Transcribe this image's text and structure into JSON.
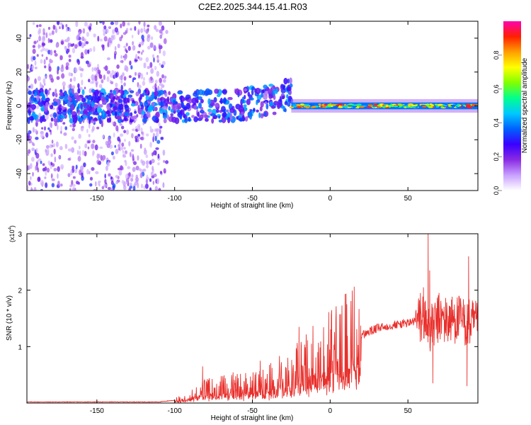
{
  "page_title": "C2E2.2025.344.15.41.R03",
  "colors": {
    "snr_line": "#e8302c",
    "colormap": [
      "#ffffff",
      "#c8a0ff",
      "#8a2be2",
      "#3a00ff",
      "#0060ff",
      "#00c8ff",
      "#00ff90",
      "#80ff00",
      "#ffff00",
      "#ffa000",
      "#ff2000",
      "#ff00b0"
    ]
  },
  "chart_data": [
    {
      "type": "heatmap",
      "title": "C2E2.2025.344.15.41.R03",
      "xlabel": "Height of straight line (km)",
      "ylabel": "Frequency (Hz)",
      "xlim": [
        -195,
        95
      ],
      "ylim": [
        -50,
        50
      ],
      "xticks": [
        -150,
        -100,
        -50,
        0,
        50
      ],
      "yticks": [
        -40,
        -20,
        0,
        20,
        40
      ],
      "colorbar": {
        "label": "Normalized spectral amplitude",
        "range": [
          0,
          1
        ],
        "ticks": [
          "0.0",
          "0.2",
          "0.4",
          "0.6",
          "0.8"
        ],
        "tick_values": [
          0,
          0.2,
          0.4,
          0.6,
          0.8
        ]
      },
      "regions": [
        {
          "name": "scattered noise",
          "x_range": [
            -195,
            -105
          ],
          "freq_range": [
            -50,
            50
          ],
          "amplitude": 0.05
        },
        {
          "name": "broad signal",
          "x_range": [
            -195,
            -25
          ],
          "freq_range": [
            -8,
            10
          ],
          "amplitude": 0.3
        },
        {
          "name": "narrow tone",
          "x_range": [
            -25,
            95
          ],
          "freq_range": [
            -3,
            3
          ],
          "amplitude": 0.9
        }
      ]
    },
    {
      "type": "line",
      "xlabel": "Height of straight line (km)",
      "ylabel": "SNR (10 * v/v)",
      "multiplier": "(x10",
      "multiplier_exp": "4",
      "multiplier_close": ")",
      "xlim": [
        -195,
        95
      ],
      "ylim": [
        0,
        3
      ],
      "xticks": [
        -150,
        -100,
        -50,
        0,
        50
      ],
      "yticks": [
        1,
        2,
        3
      ],
      "series": [
        {
          "name": "SNR",
          "points": [
            [
              -195,
              0.02
            ],
            [
              -150,
              0.02
            ],
            [
              -110,
              0.02
            ],
            [
              -100,
              0.05
            ],
            [
              -92,
              0.1
            ],
            [
              -85,
              0.2
            ],
            [
              -75,
              0.25
            ],
            [
              -60,
              0.3
            ],
            [
              -50,
              0.3
            ],
            [
              -40,
              0.35
            ],
            [
              -30,
              0.5
            ],
            [
              -20,
              0.6
            ],
            [
              -10,
              0.75
            ],
            [
              0,
              0.9
            ],
            [
              10,
              1.05
            ],
            [
              20,
              1.2
            ],
            [
              30,
              1.32
            ],
            [
              40,
              1.38
            ],
            [
              50,
              1.42
            ],
            [
              55,
              1.45
            ],
            [
              60,
              1.5
            ],
            [
              65,
              1.3
            ],
            [
              70,
              1.5
            ],
            [
              75,
              1.45
            ],
            [
              80,
              1.5
            ],
            [
              85,
              1.45
            ],
            [
              90,
              1.4
            ],
            [
              95,
              1.35
            ]
          ],
          "spikes": [
            [
              -82,
              0.65
            ],
            [
              -45,
              0.75
            ],
            [
              -20,
              1.35
            ],
            [
              -12,
              1.05
            ],
            [
              58,
              1.95
            ],
            [
              60,
              2.05
            ],
            [
              63,
              3.0
            ],
            [
              64,
              2.35
            ],
            [
              66,
              0.35
            ],
            [
              70,
              1.95
            ],
            [
              78,
              1.65
            ],
            [
              88,
              0.3
            ],
            [
              89,
              2.6
            ],
            [
              92,
              1.75
            ]
          ]
        }
      ]
    }
  ]
}
